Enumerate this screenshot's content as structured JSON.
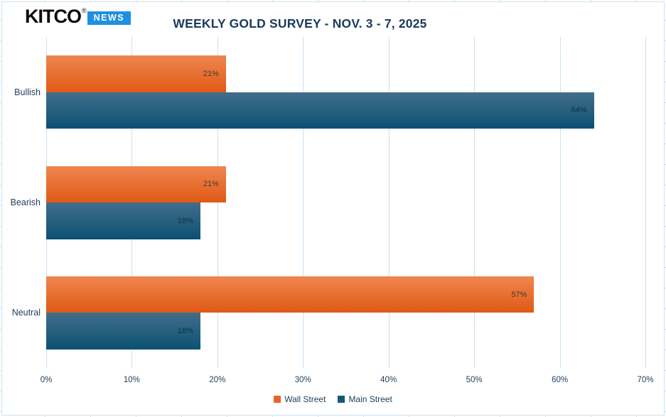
{
  "logo": {
    "brand": "KITCO",
    "reg": "®",
    "badge": "NEWS"
  },
  "title": "WEEKLY GOLD SURVEY - NOV. 3 - 7, 2025",
  "chart_data": {
    "type": "bar",
    "orientation": "horizontal",
    "title": "WEEKLY GOLD SURVEY - NOV. 3 - 7, 2025",
    "categories": [
      "Bullish",
      "Bearish",
      "Neutral"
    ],
    "series": [
      {
        "name": "Wall Street",
        "values": [
          21,
          21,
          57
        ],
        "color_top": "#ef8650",
        "color_bottom": "#e05a15",
        "legend_color": "#e8642c",
        "value_label_color": "#463a31"
      },
      {
        "name": "Main Street",
        "values": [
          64,
          18,
          18
        ],
        "color_top": "#426e8b",
        "color_bottom": "#0b5172",
        "legend_color": "#17567a",
        "value_label_color": "#142f3f"
      }
    ],
    "value_suffix": "%",
    "xlabel": "",
    "ylabel": "",
    "xlim": [
      0,
      70
    ],
    "x_ticks": [
      "0%",
      "10%",
      "20%",
      "30%",
      "40%",
      "50%",
      "60%",
      "70%"
    ],
    "grid": true,
    "grid_color": "#c9e0f2",
    "legend_position": "bottom"
  }
}
